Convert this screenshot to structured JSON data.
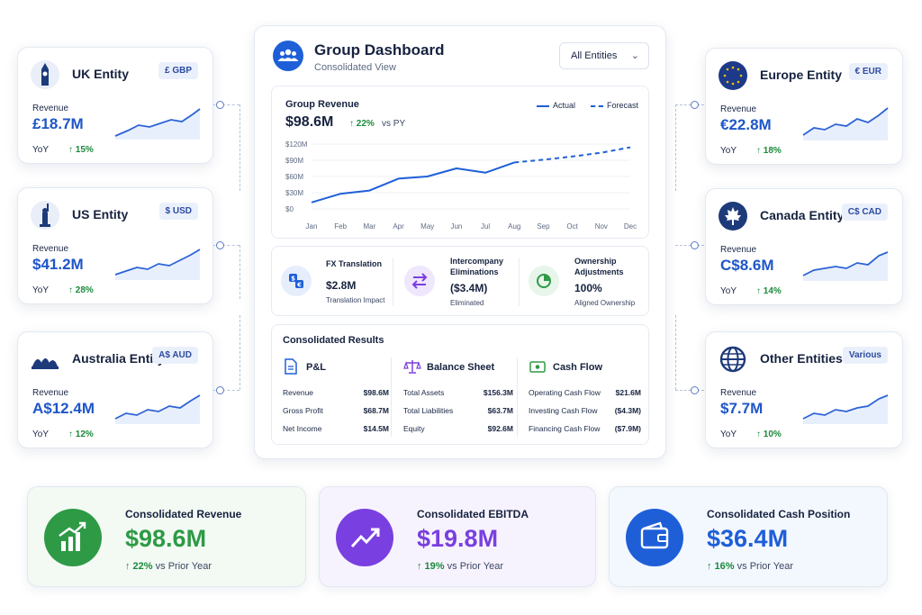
{
  "entities": [
    {
      "name": "UK Entity",
      "badge": "£ GBP",
      "revenue_label": "Revenue",
      "revenue": "£18.7M",
      "yoy_label": "YoY",
      "yoy": "↑ 15%",
      "icon": "big-ben-icon"
    },
    {
      "name": "US Entity",
      "badge": "$ USD",
      "revenue_label": "Revenue",
      "revenue": "$41.2M",
      "yoy_label": "YoY",
      "yoy": "↑ 28%",
      "icon": "statue-of-liberty-icon"
    },
    {
      "name": "Australia Entity",
      "badge": "A$ AUD",
      "revenue_label": "Revenue",
      "revenue": "A$12.4M",
      "yoy_label": "YoY",
      "yoy": "↑ 12%",
      "icon": "opera-house-icon"
    },
    {
      "name": "Europe Entity",
      "badge": "€ EUR",
      "revenue_label": "Revenue",
      "revenue": "€22.8M",
      "yoy_label": "YoY",
      "yoy": "↑ 18%",
      "icon": "eu-flag-icon"
    },
    {
      "name": "Canada Entity",
      "badge": "C$ CAD",
      "revenue_label": "Revenue",
      "revenue": "C$8.6M",
      "yoy_label": "YoY",
      "yoy": "↑ 14%",
      "icon": "maple-leaf-icon"
    },
    {
      "name": "Other Entities",
      "badge": "Various",
      "revenue_label": "Revenue",
      "revenue": "$7.7M",
      "yoy_label": "YoY",
      "yoy": "↑ 10%",
      "icon": "globe-icon"
    }
  ],
  "dashboard": {
    "title": "Group Dashboard",
    "subtitle": "Consolidated View",
    "selector": "All Entities",
    "revenue": {
      "label": "Group Revenue",
      "value": "$98.6M",
      "change": "↑ 22%",
      "change_suffix": "vs PY",
      "legend_actual": "Actual",
      "legend_forecast": "Forecast"
    },
    "fx": {
      "title": "FX Translation",
      "value": "$2.8M",
      "sub": "Translation Impact"
    },
    "ic": {
      "title": "Intercompany\nEliminations",
      "title_1": "Intercompany",
      "title_2": "Eliminations",
      "value": "($3.4M)",
      "sub": "Eliminated"
    },
    "own": {
      "title_1": "Ownership",
      "title_2": "Adjustments",
      "value": "100%",
      "sub": "Aligned Ownership"
    },
    "results": {
      "title": "Consolidated Results",
      "pl": {
        "title": "P&L",
        "rows": [
          [
            "Revenue",
            "$98.6M"
          ],
          [
            "Gross Profit",
            "$68.7M"
          ],
          [
            "Net Income",
            "$14.5M"
          ]
        ]
      },
      "bs": {
        "title": "Balance Sheet",
        "rows": [
          [
            "Total Assets",
            "$156.3M"
          ],
          [
            "Total Liabilities",
            "$63.7M"
          ],
          [
            "Equity",
            "$92.6M"
          ]
        ]
      },
      "cf": {
        "title": "Cash Flow",
        "rows": [
          [
            "Operating Cash Flow",
            "$21.6M"
          ],
          [
            "Investing Cash Flow",
            "($4.3M)"
          ],
          [
            "Financing Cash Flow",
            "($7.9M)"
          ]
        ]
      }
    }
  },
  "summary": [
    {
      "title": "Consolidated Revenue",
      "value": "$98.6M",
      "change": "↑ 22%",
      "suffix": "vs Prior Year",
      "color": "#2e9a46"
    },
    {
      "title": "Consolidated EBITDA",
      "value": "$19.8M",
      "change": "↑ 19%",
      "suffix": "vs Prior Year",
      "color": "#7a3fe0"
    },
    {
      "title": "Consolidated Cash Position",
      "value": "$36.4M",
      "change": "↑ 16%",
      "suffix": "vs Prior Year",
      "color": "#1e5fd8"
    }
  ],
  "chart_data": {
    "type": "line",
    "categories": [
      "Jan",
      "Feb",
      "Mar",
      "Apr",
      "May",
      "Jun",
      "Jul",
      "Aug",
      "Sep",
      "Oct",
      "Nov",
      "Dec"
    ],
    "ytick_labels": [
      "$120M",
      "$90M",
      "$60M",
      "$30M",
      "$0"
    ],
    "ylim": [
      0,
      120
    ],
    "series": [
      {
        "name": "Actual",
        "values": [
          12,
          28,
          34,
          56,
          60,
          75,
          67,
          86,
          null,
          null,
          null,
          null
        ]
      },
      {
        "name": "Forecast",
        "values": [
          null,
          null,
          null,
          null,
          null,
          null,
          null,
          86,
          91,
          97,
          104,
          114
        ]
      }
    ],
    "legend_position": "top-right"
  }
}
